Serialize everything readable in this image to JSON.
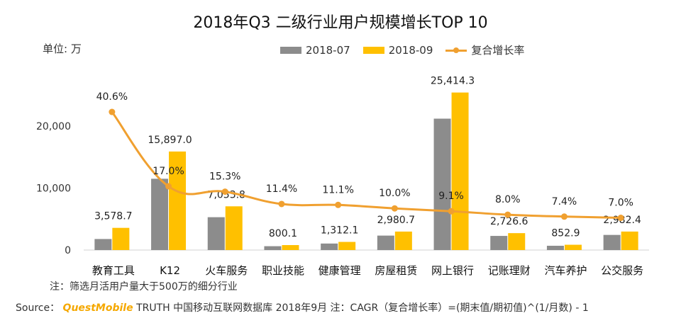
{
  "chart_data": {
    "type": "bar",
    "title": "2018年Q3 二级行业用户规模增长TOP 10",
    "unit_label": "单位: 万",
    "categories": [
      "教育工具",
      "K12",
      "火车服务",
      "职业技能",
      "健康管理",
      "房屋租赁",
      "网上银行",
      "记账理财",
      "汽车养护",
      "公交服务"
    ],
    "series": [
      {
        "name": "2018-07",
        "kind": "bar",
        "color": "#8c8c8c",
        "values": [
          1780,
          11500,
          5300,
          620,
          1050,
          2330,
          21200,
          2280,
          690,
          2440
        ]
      },
      {
        "name": "2018-09",
        "kind": "bar",
        "color": "#ffc000",
        "values": [
          3578.7,
          15897.0,
          7053.8,
          800.1,
          1312.1,
          2980.7,
          25414.3,
          2726.6,
          852.9,
          2982.4
        ],
        "data_labels": [
          "3,578.7",
          "15,897.0",
          "7,053.8",
          "800.1",
          "1,312.1",
          "2,980.7",
          "25,414.3",
          "2,726.6",
          "852.9",
          "2,982.4"
        ]
      },
      {
        "name": "复合增长率",
        "kind": "line",
        "color": "#f0a030",
        "values": [
          40.6,
          17.0,
          15.3,
          11.4,
          11.1,
          10.0,
          9.1,
          8.0,
          7.4,
          7.0
        ],
        "data_labels": [
          "40.6%",
          "17.0%",
          "15.3%",
          "11.4%",
          "11.1%",
          "10.0%",
          "9.1%",
          "8.0%",
          "7.4%",
          "7.0%"
        ]
      }
    ],
    "y_ticks": [
      "0",
      "10,000",
      "20,000"
    ],
    "ylim": [
      0,
      26000
    ],
    "grid": false,
    "legend_position": "top"
  },
  "note": "注：筛选月活用户量大于500万的细分行业",
  "source": {
    "prefix": "Source：",
    "brand": "QuestMobile",
    "text": "TRUTH 中国移动互联网数据库 2018年9月     注：CAGR（复合增长率）=(期末值/期初值)^(1/月数) - 1"
  }
}
